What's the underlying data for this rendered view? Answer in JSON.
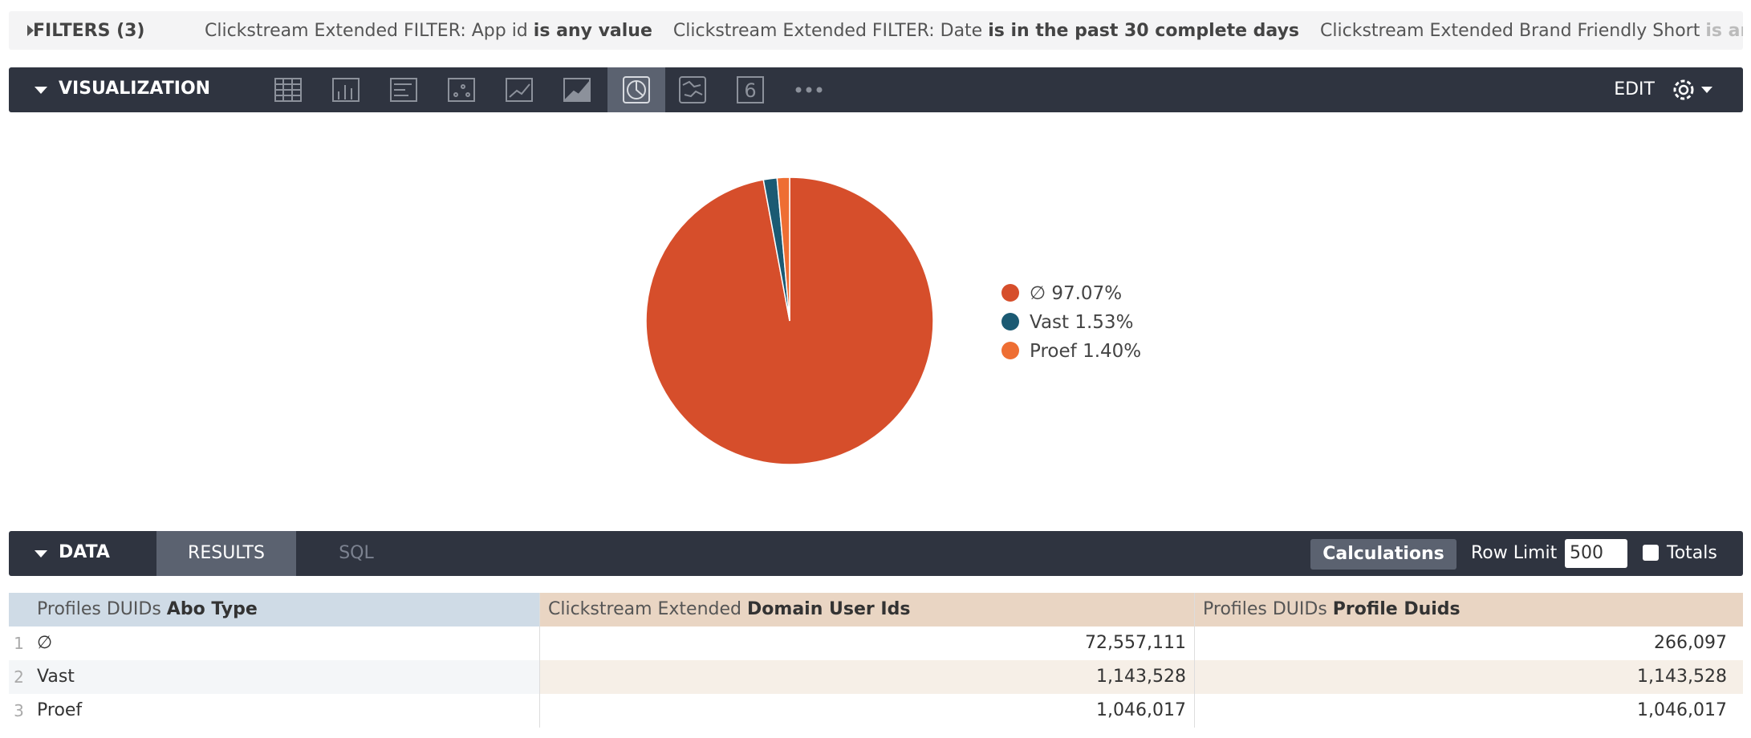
{
  "filters": {
    "label": "FILTERS (3)",
    "items": [
      {
        "field": "Clickstream Extended FILTER: App id",
        "condition": "is any value"
      },
      {
        "field": "Clickstream Extended FILTER: Date",
        "condition": "is in the past 30 complete days"
      },
      {
        "field": "Clickstream Extended Brand Friendly Short",
        "condition": "is an"
      }
    ]
  },
  "visualization": {
    "label": "VISUALIZATION",
    "edit": "EDIT",
    "single_value_icon": "6"
  },
  "chart_data": {
    "type": "pie",
    "categories": [
      "∅",
      "Vast",
      "Proef"
    ],
    "values": [
      97.07,
      1.53,
      1.4
    ],
    "value_labels": [
      "97.07%",
      "1.53%",
      "1.40%"
    ],
    "colors": [
      "#d64e2b",
      "#1b5a73",
      "#ee6e33"
    ]
  },
  "data_panel": {
    "label": "DATA",
    "tabs": [
      "RESULTS",
      "SQL"
    ],
    "calculations": "Calculations",
    "row_limit_label": "Row Limit",
    "row_limit": "500",
    "totals": "Totals"
  },
  "table": {
    "columns": [
      {
        "view": "Profiles DUIDs",
        "field": "Abo Type"
      },
      {
        "view": "Clickstream Extended",
        "field": "Domain User Ids"
      },
      {
        "view": "Profiles DUIDs",
        "field": "Profile Duids"
      }
    ],
    "row_numbers": [
      "1",
      "2",
      "3"
    ],
    "rows": [
      [
        "∅",
        "72,557,111",
        "266,097"
      ],
      [
        "Vast",
        "1,143,528",
        "1,143,528"
      ],
      [
        "Proef",
        "1,046,017",
        "1,046,017"
      ]
    ]
  }
}
